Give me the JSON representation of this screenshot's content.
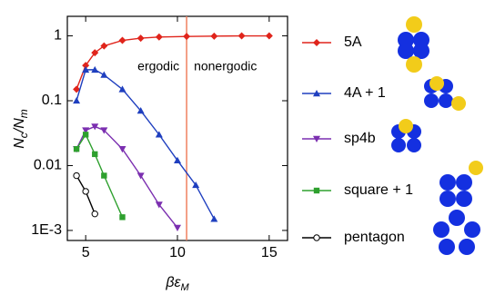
{
  "chart_data": {
    "type": "line",
    "x_label": "βε",
    "x_label_sub": "M",
    "y_label_parts": [
      "N",
      "c",
      "/N",
      "m"
    ],
    "log_y": true,
    "xlim": [
      4,
      16
    ],
    "ylim": [
      0.0007,
      2
    ],
    "xticks": [
      5,
      10,
      15
    ],
    "yticks": [
      1,
      0.1,
      0.01,
      {
        "value": 0.001,
        "label": "1E-3"
      }
    ],
    "divider_x": 10.5,
    "divider_color": "#f08060",
    "annotations": [
      "ergodic",
      "nonergodic"
    ],
    "series": [
      {
        "name": "5A",
        "color": "#e0241b",
        "marker": "diamond",
        "x": [
          4.5,
          5,
          5.5,
          6,
          7,
          8,
          9,
          10.5,
          12,
          13.5,
          15
        ],
        "values": [
          0.15,
          0.35,
          0.55,
          0.7,
          0.85,
          0.92,
          0.96,
          0.98,
          0.99,
          1,
          1
        ]
      },
      {
        "name": "4A + 1",
        "color": "#1f3fbf",
        "marker": "triangle",
        "x": [
          4.5,
          5,
          5.5,
          6,
          7,
          8,
          9,
          10,
          11,
          12
        ],
        "values": [
          0.1,
          0.3,
          0.3,
          0.25,
          0.15,
          0.07,
          0.03,
          0.012,
          0.005,
          0.0015
        ]
      },
      {
        "name": "sp4b",
        "color": "#7b2fb0",
        "marker": "triangle-down",
        "x": [
          4.5,
          5,
          5.5,
          6,
          7,
          8,
          9,
          10
        ],
        "values": [
          0.018,
          0.035,
          0.04,
          0.035,
          0.018,
          0.007,
          0.0025,
          0.0011
        ]
      },
      {
        "name": "square + 1",
        "color": "#2ea02e",
        "marker": "square",
        "x": [
          4.5,
          5,
          5.5,
          6,
          7
        ],
        "values": [
          0.018,
          0.03,
          0.015,
          0.007,
          0.0016
        ]
      },
      {
        "name": "pentagon",
        "color": "#000000",
        "marker": "circle-open",
        "x": [
          4.5,
          5,
          5.5
        ],
        "values": [
          0.007,
          0.004,
          0.0018
        ]
      }
    ]
  }
}
